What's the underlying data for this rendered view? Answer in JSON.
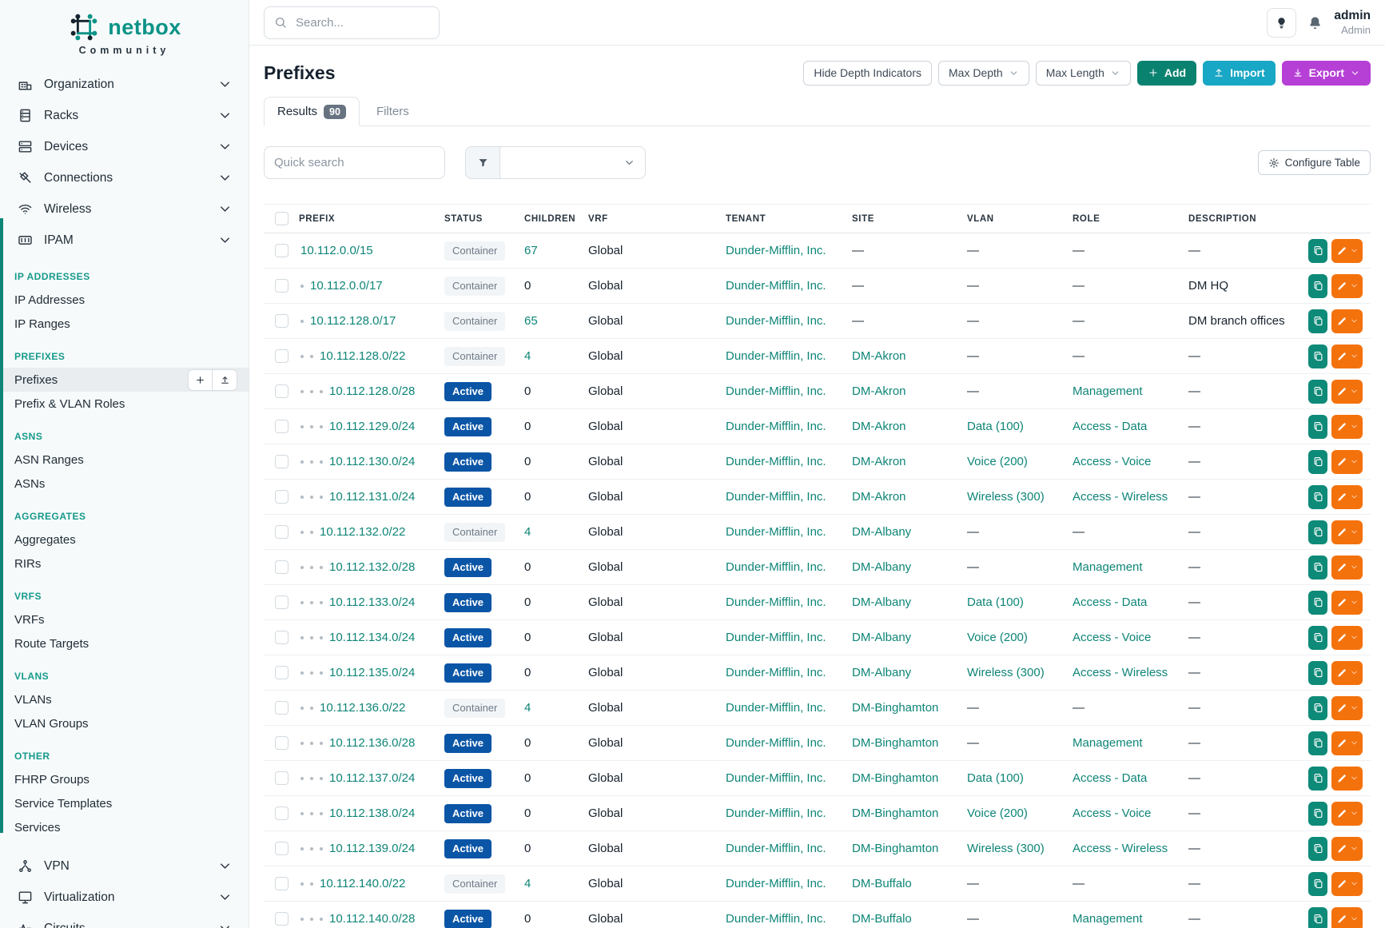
{
  "sidebar": {
    "logo": {
      "brand": "netbox",
      "subtitle": "Community"
    },
    "top_items": [
      {
        "label": "Organization",
        "icon": "building"
      },
      {
        "label": "Racks",
        "icon": "rack"
      },
      {
        "label": "Devices",
        "icon": "devices"
      },
      {
        "label": "Connections",
        "icon": "connections"
      },
      {
        "label": "Wireless",
        "icon": "wireless"
      },
      {
        "label": "IPAM",
        "icon": "ipam"
      }
    ],
    "sections": [
      {
        "header": "IP ADDRESSES",
        "items": [
          {
            "label": "IP Addresses"
          },
          {
            "label": "IP Ranges"
          }
        ]
      },
      {
        "header": "PREFIXES",
        "items": [
          {
            "label": "Prefixes",
            "active": true
          },
          {
            "label": "Prefix & VLAN Roles"
          }
        ]
      },
      {
        "header": "ASNS",
        "items": [
          {
            "label": "ASN Ranges"
          },
          {
            "label": "ASNs"
          }
        ]
      },
      {
        "header": "AGGREGATES",
        "items": [
          {
            "label": "Aggregates"
          },
          {
            "label": "RIRs"
          }
        ]
      },
      {
        "header": "VRFS",
        "items": [
          {
            "label": "VRFs"
          },
          {
            "label": "Route Targets"
          }
        ]
      },
      {
        "header": "VLANS",
        "items": [
          {
            "label": "VLANs"
          },
          {
            "label": "VLAN Groups"
          }
        ]
      },
      {
        "header": "OTHER",
        "items": [
          {
            "label": "FHRP Groups"
          },
          {
            "label": "Service Templates"
          },
          {
            "label": "Services"
          }
        ]
      }
    ],
    "bottom_items": [
      {
        "label": "VPN",
        "icon": "vpn"
      },
      {
        "label": "Virtualization",
        "icon": "virtualization"
      },
      {
        "label": "Circuits",
        "icon": "circuits"
      }
    ]
  },
  "topbar": {
    "search_placeholder": "Search...",
    "user": {
      "name": "admin",
      "role": "Admin"
    }
  },
  "page": {
    "title": "Prefixes",
    "toolbar": {
      "hide_depth": "Hide Depth Indicators",
      "max_depth": "Max Depth",
      "max_length": "Max Length",
      "add": "Add",
      "import": "Import",
      "export": "Export"
    },
    "tabs": [
      {
        "label": "Results",
        "badge": "90",
        "active": true
      },
      {
        "label": "Filters",
        "badge": "",
        "active": false
      }
    ],
    "quick_search_placeholder": "Quick search",
    "configure_table": "Configure Table"
  },
  "table": {
    "columns": [
      "PREFIX",
      "STATUS",
      "CHILDREN",
      "VRF",
      "TENANT",
      "SITE",
      "VLAN",
      "ROLE",
      "DESCRIPTION"
    ],
    "empty_placeholder": "—",
    "rows": [
      {
        "prefix": "10.112.0.0/15",
        "depth": 0,
        "status": "Container",
        "children": "67",
        "vrf": "Global",
        "tenant": "Dunder-Mifflin, Inc.",
        "site": "",
        "vlan": "",
        "role": "",
        "description": ""
      },
      {
        "prefix": "10.112.0.0/17",
        "depth": 1,
        "status": "Container",
        "children": "0",
        "vrf": "Global",
        "tenant": "Dunder-Mifflin, Inc.",
        "site": "",
        "vlan": "",
        "role": "",
        "description": "DM HQ"
      },
      {
        "prefix": "10.112.128.0/17",
        "depth": 1,
        "status": "Container",
        "children": "65",
        "vrf": "Global",
        "tenant": "Dunder-Mifflin, Inc.",
        "site": "",
        "vlan": "",
        "role": "",
        "description": "DM branch offices"
      },
      {
        "prefix": "10.112.128.0/22",
        "depth": 2,
        "status": "Container",
        "children": "4",
        "vrf": "Global",
        "tenant": "Dunder-Mifflin, Inc.",
        "site": "DM-Akron",
        "vlan": "",
        "role": "",
        "description": ""
      },
      {
        "prefix": "10.112.128.0/28",
        "depth": 3,
        "status": "Active",
        "children": "0",
        "vrf": "Global",
        "tenant": "Dunder-Mifflin, Inc.",
        "site": "DM-Akron",
        "vlan": "",
        "role": "Management",
        "description": ""
      },
      {
        "prefix": "10.112.129.0/24",
        "depth": 3,
        "status": "Active",
        "children": "0",
        "vrf": "Global",
        "tenant": "Dunder-Mifflin, Inc.",
        "site": "DM-Akron",
        "vlan": "Data (100)",
        "role": "Access - Data",
        "description": ""
      },
      {
        "prefix": "10.112.130.0/24",
        "depth": 3,
        "status": "Active",
        "children": "0",
        "vrf": "Global",
        "tenant": "Dunder-Mifflin, Inc.",
        "site": "DM-Akron",
        "vlan": "Voice (200)",
        "role": "Access - Voice",
        "description": ""
      },
      {
        "prefix": "10.112.131.0/24",
        "depth": 3,
        "status": "Active",
        "children": "0",
        "vrf": "Global",
        "tenant": "Dunder-Mifflin, Inc.",
        "site": "DM-Akron",
        "vlan": "Wireless (300)",
        "role": "Access - Wireless",
        "description": ""
      },
      {
        "prefix": "10.112.132.0/22",
        "depth": 2,
        "status": "Container",
        "children": "4",
        "vrf": "Global",
        "tenant": "Dunder-Mifflin, Inc.",
        "site": "DM-Albany",
        "vlan": "",
        "role": "",
        "description": ""
      },
      {
        "prefix": "10.112.132.0/28",
        "depth": 3,
        "status": "Active",
        "children": "0",
        "vrf": "Global",
        "tenant": "Dunder-Mifflin, Inc.",
        "site": "DM-Albany",
        "vlan": "",
        "role": "Management",
        "description": ""
      },
      {
        "prefix": "10.112.133.0/24",
        "depth": 3,
        "status": "Active",
        "children": "0",
        "vrf": "Global",
        "tenant": "Dunder-Mifflin, Inc.",
        "site": "DM-Albany",
        "vlan": "Data (100)",
        "role": "Access - Data",
        "description": ""
      },
      {
        "prefix": "10.112.134.0/24",
        "depth": 3,
        "status": "Active",
        "children": "0",
        "vrf": "Global",
        "tenant": "Dunder-Mifflin, Inc.",
        "site": "DM-Albany",
        "vlan": "Voice (200)",
        "role": "Access - Voice",
        "description": ""
      },
      {
        "prefix": "10.112.135.0/24",
        "depth": 3,
        "status": "Active",
        "children": "0",
        "vrf": "Global",
        "tenant": "Dunder-Mifflin, Inc.",
        "site": "DM-Albany",
        "vlan": "Wireless (300)",
        "role": "Access - Wireless",
        "description": ""
      },
      {
        "prefix": "10.112.136.0/22",
        "depth": 2,
        "status": "Container",
        "children": "4",
        "vrf": "Global",
        "tenant": "Dunder-Mifflin, Inc.",
        "site": "DM-Binghamton",
        "vlan": "",
        "role": "",
        "description": ""
      },
      {
        "prefix": "10.112.136.0/28",
        "depth": 3,
        "status": "Active",
        "children": "0",
        "vrf": "Global",
        "tenant": "Dunder-Mifflin, Inc.",
        "site": "DM-Binghamton",
        "vlan": "",
        "role": "Management",
        "description": ""
      },
      {
        "prefix": "10.112.137.0/24",
        "depth": 3,
        "status": "Active",
        "children": "0",
        "vrf": "Global",
        "tenant": "Dunder-Mifflin, Inc.",
        "site": "DM-Binghamton",
        "vlan": "Data (100)",
        "role": "Access - Data",
        "description": ""
      },
      {
        "prefix": "10.112.138.0/24",
        "depth": 3,
        "status": "Active",
        "children": "0",
        "vrf": "Global",
        "tenant": "Dunder-Mifflin, Inc.",
        "site": "DM-Binghamton",
        "vlan": "Voice (200)",
        "role": "Access - Voice",
        "description": ""
      },
      {
        "prefix": "10.112.139.0/24",
        "depth": 3,
        "status": "Active",
        "children": "0",
        "vrf": "Global",
        "tenant": "Dunder-Mifflin, Inc.",
        "site": "DM-Binghamton",
        "vlan": "Wireless (300)",
        "role": "Access - Wireless",
        "description": ""
      },
      {
        "prefix": "10.112.140.0/22",
        "depth": 2,
        "status": "Container",
        "children": "4",
        "vrf": "Global",
        "tenant": "Dunder-Mifflin, Inc.",
        "site": "DM-Buffalo",
        "vlan": "",
        "role": "",
        "description": ""
      },
      {
        "prefix": "10.112.140.0/28",
        "depth": 3,
        "status": "Active",
        "children": "0",
        "vrf": "Global",
        "tenant": "Dunder-Mifflin, Inc.",
        "site": "DM-Buffalo",
        "vlan": "",
        "role": "Management",
        "description": ""
      }
    ]
  },
  "colors": {
    "brand_teal": "#0a9386",
    "link_teal": "#0e8577",
    "section_header_teal": "#169a8c",
    "sidebar_accent": "#0e8577",
    "active_badge_blue": "#0b55a6",
    "container_badge_bg": "#f2f5f7",
    "add_button": "#0a8270",
    "import_button": "#18a7c4",
    "export_button": "#b63fd6",
    "edit_button_orange": "#f4720c",
    "clone_button_teal": "#0e8a78"
  }
}
